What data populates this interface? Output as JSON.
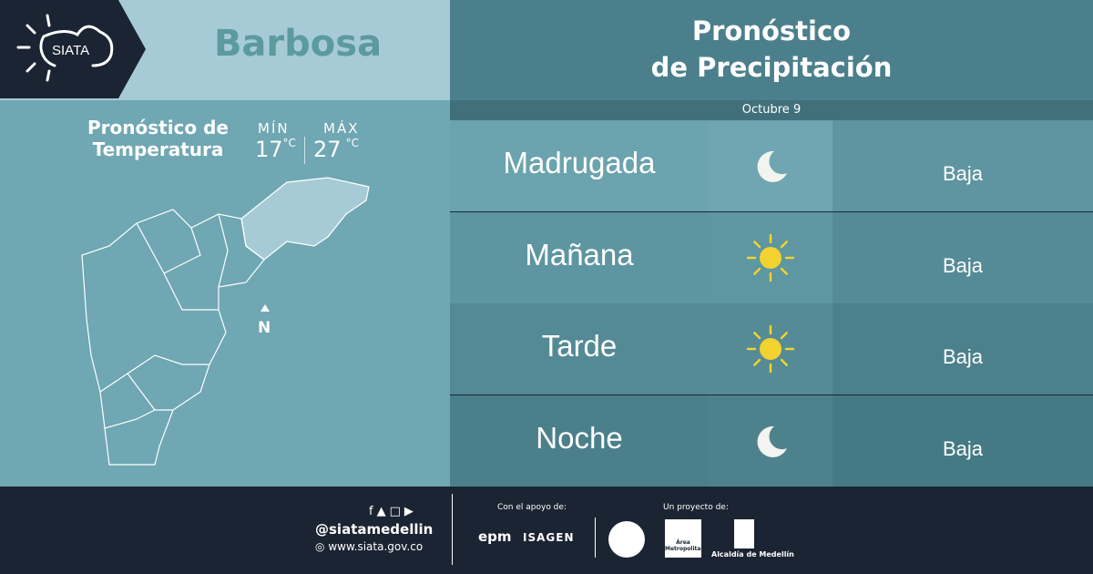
{
  "logo": {
    "text": "SIATA"
  },
  "city": "Barbosa",
  "temperature": {
    "title_line1": "Pronóstico de",
    "title_line2": "Temperatura",
    "min_label": "MÍN",
    "min_value": "17",
    "max_label": "MÁX",
    "max_value": "27",
    "unit": "°C"
  },
  "map": {
    "north_label": "N"
  },
  "precipitation": {
    "title_line1": "Pronóstico",
    "title_line2": "de Precipitación",
    "date": "Octubre 9",
    "rows": [
      {
        "period": "Madrugada",
        "icon": "moon-icon",
        "level": "Baja"
      },
      {
        "period": "Mañana",
        "icon": "sun-icon",
        "level": "Baja"
      },
      {
        "period": "Tarde",
        "icon": "sun-icon",
        "level": "Baja"
      },
      {
        "period": "Noche",
        "icon": "moon-icon",
        "level": "Baja"
      }
    ]
  },
  "footer": {
    "handle": "@siatamedellin",
    "website": "www.siata.gov.co",
    "support_label": "Con el apoyo de:",
    "support_logos": [
      "epm",
      "ISAGEN"
    ],
    "project_label": "Un proyecto de:",
    "project_logos": [
      "Área Metropolitana",
      "Alcaldía de Medellín"
    ]
  },
  "colors": {
    "sun": "#f2d22e",
    "moon": "#f3f3ef",
    "footer_bg": "#1b2432"
  }
}
